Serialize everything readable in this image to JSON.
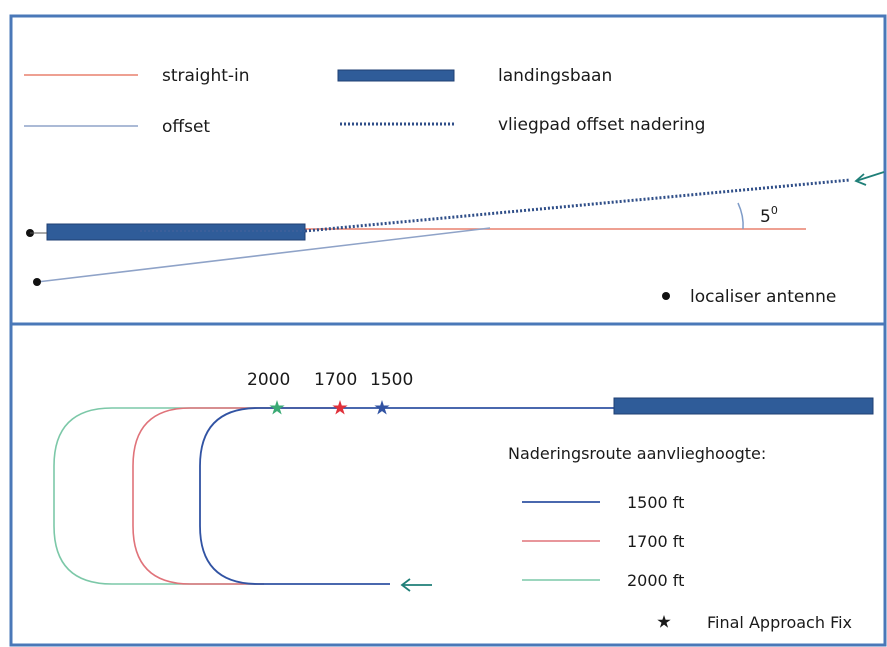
{
  "colors": {
    "frame": "#4a78b8",
    "straight_in": "#e8806f",
    "offset": "#8fa3c8",
    "runway": "#2f5c99",
    "runway_edge": "#1f3f73",
    "offset_path": "#2f4e88",
    "route_1500": "#3153a3",
    "route_1700": "#e0737a",
    "route_2000": "#7cc8a8",
    "arrow": "#1f7f78",
    "antenna": "#111111"
  },
  "top_panel": {
    "legend": {
      "straight_in": "straight-in",
      "offset": "offset",
      "runway": "landingsbaan",
      "offset_flight_path": "vliegpad offset nadering"
    },
    "angle_label": "5",
    "angle_superscript": "0",
    "antenna_label": "localiser antenne"
  },
  "bottom_panel": {
    "altitude_labels": [
      "2000",
      "1700",
      "1500"
    ],
    "legend_title": "Naderingsroute aanvlieghoogte:",
    "routes": [
      {
        "label": "1500 ft"
      },
      {
        "label": "1700 ft"
      },
      {
        "label": "2000 ft"
      }
    ],
    "faf_label": "Final Approach Fix"
  }
}
